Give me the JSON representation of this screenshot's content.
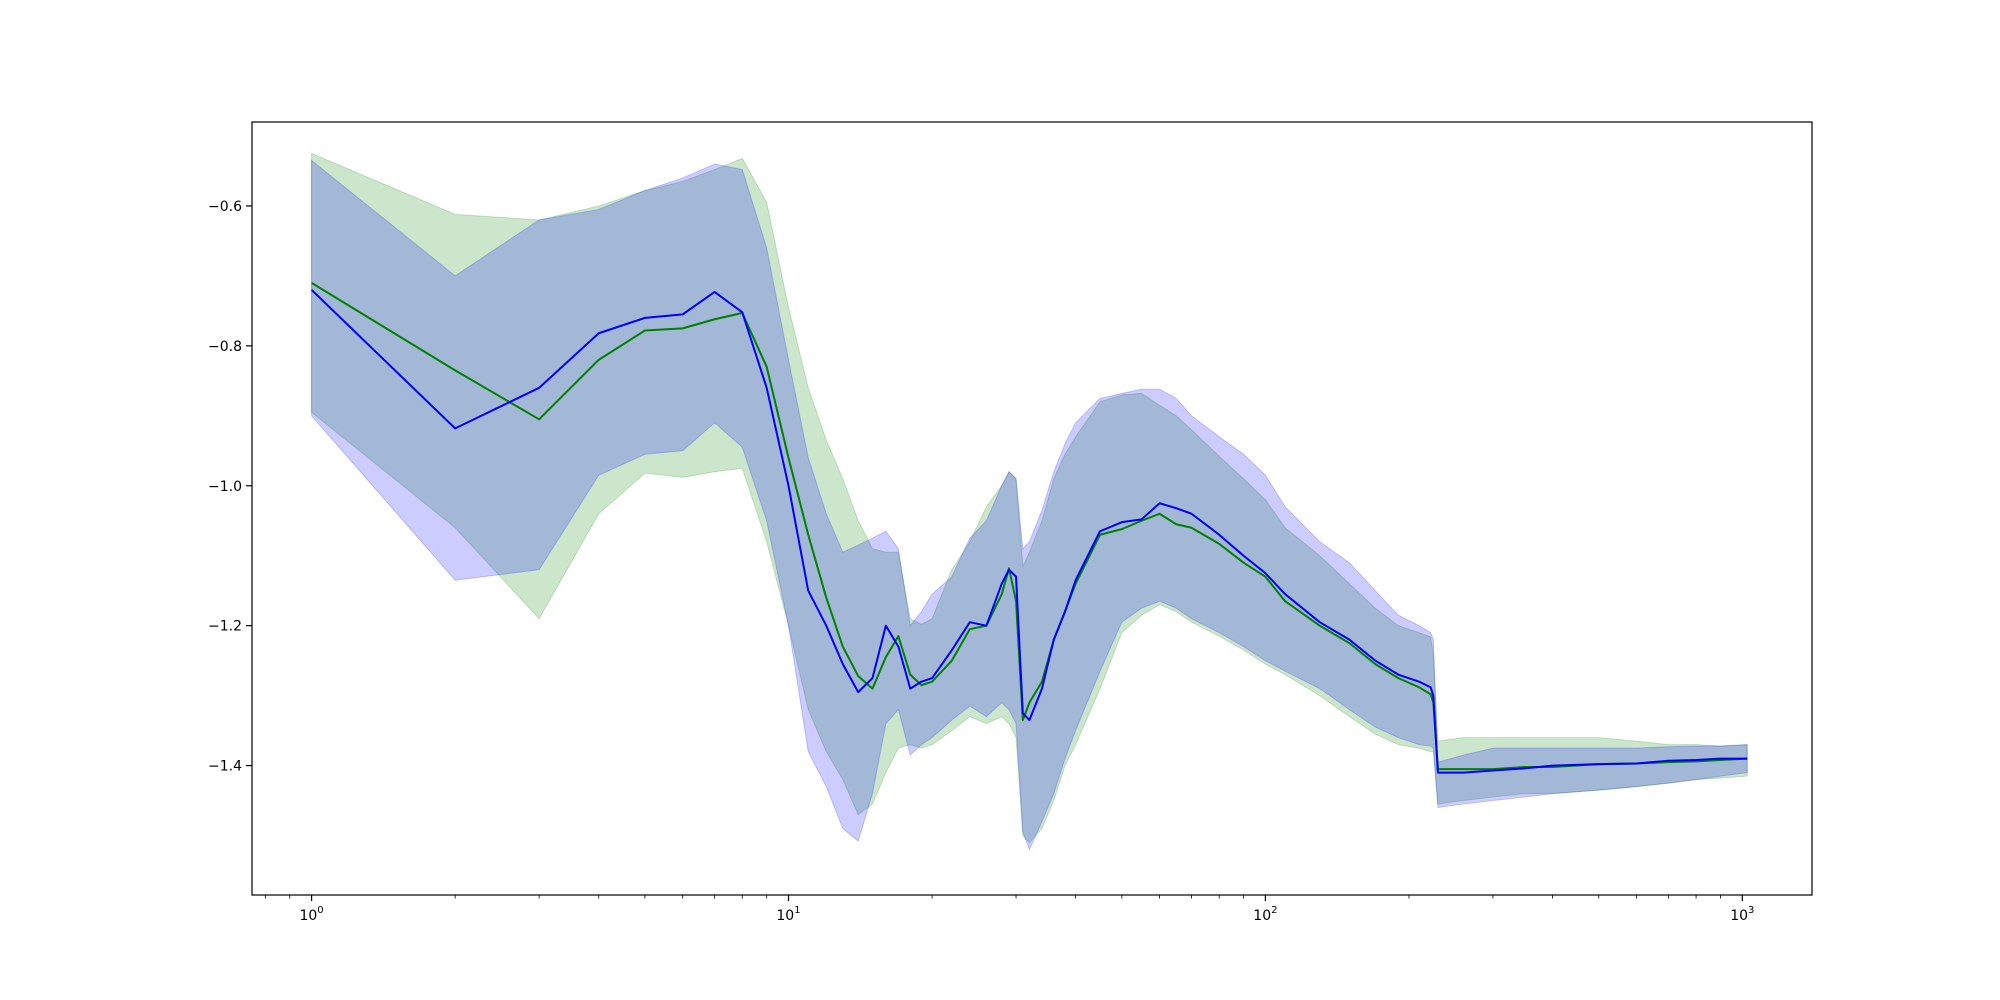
{
  "chart_data": {
    "type": "line",
    "title": "",
    "xlabel": "",
    "ylabel": "",
    "x_scale": "log",
    "xlim": [
      0.75,
      1400
    ],
    "ylim": [
      -1.585,
      -0.48
    ],
    "grid": false,
    "legend": "none",
    "x_tick_labels": [
      {
        "value": 1,
        "base": "10",
        "exp": "0"
      },
      {
        "value": 10,
        "base": "10",
        "exp": "1"
      },
      {
        "value": 100,
        "base": "10",
        "exp": "2"
      },
      {
        "value": 1000,
        "base": "10",
        "exp": "3"
      }
    ],
    "y_ticks": [
      -0.6,
      -0.8,
      -1.0,
      -1.2,
      -1.4
    ],
    "y_tick_labels": [
      "−0.6",
      "−0.8",
      "−1.0",
      "−1.2",
      "−1.4"
    ],
    "series": [
      {
        "color": "#008000",
        "band_color": "#008000",
        "band_opacity": 0.2,
        "x": [
          1,
          2,
          3,
          4,
          5,
          6,
          7,
          8,
          9,
          10,
          11,
          12,
          13,
          14,
          15,
          16,
          17,
          18,
          19,
          20,
          22,
          24,
          26,
          28,
          29,
          30,
          31,
          32,
          34,
          36,
          38,
          40,
          45,
          50,
          55,
          60,
          65,
          70,
          80,
          90,
          100,
          110,
          130,
          150,
          170,
          190,
          210,
          222,
          225,
          230,
          260,
          300,
          350,
          400,
          500,
          600,
          700,
          800,
          900,
          1024
        ],
        "y": [
          -0.71,
          -0.835,
          -0.905,
          -0.82,
          -0.778,
          -0.775,
          -0.762,
          -0.753,
          -0.83,
          -0.96,
          -1.07,
          -1.16,
          -1.23,
          -1.272,
          -1.29,
          -1.245,
          -1.215,
          -1.27,
          -1.285,
          -1.28,
          -1.25,
          -1.205,
          -1.2,
          -1.155,
          -1.118,
          -1.165,
          -1.335,
          -1.31,
          -1.28,
          -1.22,
          -1.18,
          -1.14,
          -1.07,
          -1.062,
          -1.05,
          -1.04,
          -1.055,
          -1.06,
          -1.083,
          -1.11,
          -1.13,
          -1.165,
          -1.2,
          -1.225,
          -1.255,
          -1.275,
          -1.288,
          -1.298,
          -1.31,
          -1.405,
          -1.405,
          -1.405,
          -1.402,
          -1.402,
          -1.398,
          -1.397,
          -1.395,
          -1.394,
          -1.392,
          -1.39
        ],
        "upper": [
          -0.525,
          -0.612,
          -0.62,
          -0.6,
          -0.578,
          -0.565,
          -0.548,
          -0.532,
          -0.595,
          -0.745,
          -0.86,
          -0.935,
          -0.99,
          -1.05,
          -1.09,
          -1.095,
          -1.095,
          -1.19,
          -1.198,
          -1.19,
          -1.12,
          -1.08,
          -1.03,
          -1.0,
          -0.98,
          -0.99,
          -1.115,
          -1.095,
          -1.05,
          -0.99,
          -0.955,
          -0.93,
          -0.88,
          -0.87,
          -0.868,
          -0.885,
          -0.9,
          -0.92,
          -0.958,
          -0.99,
          -1.02,
          -1.06,
          -1.1,
          -1.14,
          -1.175,
          -1.2,
          -1.21,
          -1.216,
          -1.24,
          -1.365,
          -1.36,
          -1.36,
          -1.36,
          -1.36,
          -1.36,
          -1.365,
          -1.37,
          -1.37,
          -1.372,
          -1.37
        ],
        "lower": [
          -0.895,
          -1.06,
          -1.19,
          -1.04,
          -0.982,
          -0.988,
          -0.98,
          -0.975,
          -1.08,
          -1.2,
          -1.32,
          -1.38,
          -1.42,
          -1.47,
          -1.455,
          -1.41,
          -1.375,
          -1.37,
          -1.375,
          -1.37,
          -1.35,
          -1.33,
          -1.34,
          -1.33,
          -1.34,
          -1.36,
          -1.5,
          -1.51,
          -1.49,
          -1.45,
          -1.4,
          -1.37,
          -1.29,
          -1.21,
          -1.185,
          -1.17,
          -1.18,
          -1.195,
          -1.215,
          -1.235,
          -1.255,
          -1.27,
          -1.3,
          -1.33,
          -1.355,
          -1.37,
          -1.375,
          -1.38,
          -1.38,
          -1.455,
          -1.45,
          -1.445,
          -1.44,
          -1.44,
          -1.435,
          -1.43,
          -1.425,
          -1.42,
          -1.418,
          -1.415
        ]
      },
      {
        "color": "#0000ff",
        "band_color": "#0000ff",
        "band_opacity": 0.2,
        "x": [
          1,
          2,
          3,
          4,
          5,
          6,
          7,
          8,
          9,
          10,
          11,
          12,
          13,
          14,
          15,
          16,
          17,
          18,
          19,
          20,
          22,
          24,
          26,
          28,
          29,
          30,
          31,
          32,
          34,
          36,
          38,
          40,
          45,
          50,
          55,
          60,
          65,
          70,
          80,
          90,
          100,
          110,
          130,
          150,
          170,
          190,
          210,
          222,
          225,
          230,
          260,
          300,
          350,
          400,
          500,
          600,
          700,
          800,
          900,
          1024
        ],
        "y": [
          -0.72,
          -0.918,
          -0.86,
          -0.782,
          -0.76,
          -0.755,
          -0.723,
          -0.752,
          -0.86,
          -1.0,
          -1.15,
          -1.2,
          -1.255,
          -1.295,
          -1.275,
          -1.2,
          -1.23,
          -1.29,
          -1.28,
          -1.275,
          -1.235,
          -1.195,
          -1.2,
          -1.14,
          -1.12,
          -1.13,
          -1.325,
          -1.335,
          -1.29,
          -1.22,
          -1.18,
          -1.135,
          -1.065,
          -1.052,
          -1.048,
          -1.025,
          -1.032,
          -1.04,
          -1.07,
          -1.1,
          -1.125,
          -1.155,
          -1.195,
          -1.22,
          -1.25,
          -1.27,
          -1.28,
          -1.288,
          -1.3,
          -1.41,
          -1.41,
          -1.407,
          -1.404,
          -1.4,
          -1.398,
          -1.397,
          -1.393,
          -1.392,
          -1.39,
          -1.39
        ],
        "upper": [
          -0.535,
          -0.7,
          -0.62,
          -0.605,
          -0.578,
          -0.56,
          -0.54,
          -0.548,
          -0.66,
          -0.82,
          -0.96,
          -1.04,
          -1.095,
          -1.085,
          -1.075,
          -1.065,
          -1.09,
          -1.2,
          -1.18,
          -1.155,
          -1.13,
          -1.075,
          -1.05,
          -1.0,
          -0.98,
          -0.99,
          -1.09,
          -1.08,
          -1.035,
          -0.98,
          -0.94,
          -0.91,
          -0.875,
          -0.868,
          -0.862,
          -0.862,
          -0.875,
          -0.9,
          -0.93,
          -0.955,
          -0.985,
          -1.03,
          -1.08,
          -1.11,
          -1.15,
          -1.185,
          -1.2,
          -1.21,
          -1.22,
          -1.395,
          -1.385,
          -1.375,
          -1.375,
          -1.375,
          -1.375,
          -1.375,
          -1.373,
          -1.372,
          -1.372,
          -1.37
        ],
        "lower": [
          -0.9,
          -1.135,
          -1.12,
          -0.985,
          -0.955,
          -0.95,
          -0.91,
          -0.945,
          -1.05,
          -1.2,
          -1.38,
          -1.43,
          -1.49,
          -1.508,
          -1.44,
          -1.34,
          -1.32,
          -1.385,
          -1.37,
          -1.36,
          -1.335,
          -1.315,
          -1.33,
          -1.31,
          -1.32,
          -1.34,
          -1.495,
          -1.52,
          -1.48,
          -1.44,
          -1.39,
          -1.35,
          -1.265,
          -1.195,
          -1.175,
          -1.165,
          -1.175,
          -1.19,
          -1.21,
          -1.23,
          -1.25,
          -1.265,
          -1.29,
          -1.32,
          -1.345,
          -1.36,
          -1.37,
          -1.372,
          -1.375,
          -1.46,
          -1.455,
          -1.45,
          -1.445,
          -1.44,
          -1.435,
          -1.43,
          -1.425,
          -1.42,
          -1.415,
          -1.41
        ]
      }
    ]
  }
}
